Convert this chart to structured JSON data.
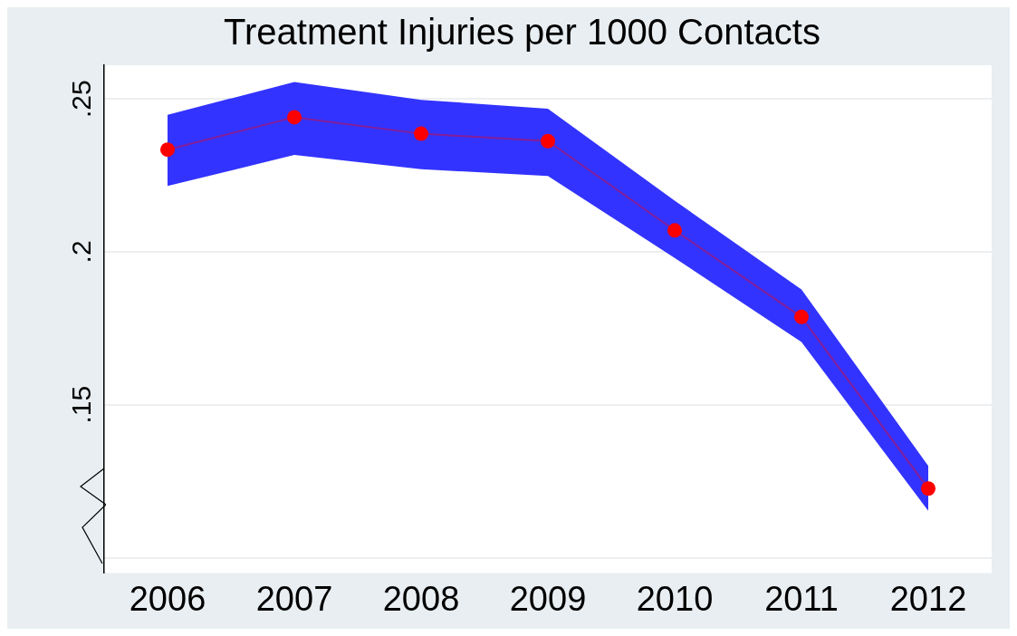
{
  "chart_data": {
    "type": "line",
    "title": "Treatment Injuries per 1000 Contacts",
    "categories": [
      "2006",
      "2007",
      "2008",
      "2009",
      "2010",
      "2011",
      "2012"
    ],
    "series": [
      {
        "color": "#ff0000",
        "values": [
          0.2334,
          0.244,
          0.2386,
          0.2362,
          0.207,
          0.1787,
          0.1226
        ],
        "lower": [
          0.2215,
          0.2317,
          0.227,
          0.2248,
          0.198,
          0.1705,
          0.1153
        ],
        "upper": [
          0.2448,
          0.2555,
          0.2497,
          0.2468,
          0.2167,
          0.1877,
          0.13
        ]
      }
    ],
    "ylim": [
      0.095,
      0.261
    ],
    "yticks": [
      {
        "value": 0.1,
        "label": null
      },
      {
        "value": 0.15,
        "label": ".15"
      },
      {
        "value": 0.2,
        "label": ".2"
      },
      {
        "value": 0.25,
        "label": ".25"
      }
    ],
    "grid": "y",
    "legend": false,
    "marker": "circle",
    "line_style": "solid"
  }
}
